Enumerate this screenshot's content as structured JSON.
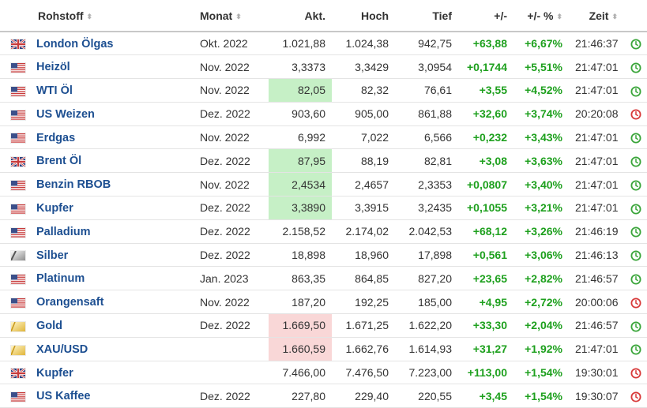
{
  "header": {
    "rohstoff": "Rohstoff",
    "monat": "Monat",
    "akt": "Akt.",
    "hoch": "Hoch",
    "tief": "Tief",
    "change": "+/-",
    "change_pct": "+/- %",
    "zeit": "Zeit"
  },
  "colors": {
    "positive": "#1ea01e",
    "link": "#1d4f91",
    "highlight_up": "#c6f0c6",
    "highlight_down": "#f9d7d7",
    "clock_open": "#3aa53a",
    "clock_closed": "#d83a3a"
  },
  "rows": [
    {
      "flag": "uk-flag-icon",
      "name": "London Ölgas",
      "month": "Okt. 2022",
      "akt": "1.021,88",
      "hoch": "1.024,38",
      "tief": "942,75",
      "chg": "+63,88",
      "pct": "+6,67%",
      "time": "21:46:37",
      "clock": "open",
      "hl": ""
    },
    {
      "flag": "us-flag-icon",
      "name": "Heizöl",
      "month": "Nov. 2022",
      "akt": "3,3373",
      "hoch": "3,3429",
      "tief": "3,0954",
      "chg": "+0,1744",
      "pct": "+5,51%",
      "time": "21:47:01",
      "clock": "open",
      "hl": ""
    },
    {
      "flag": "us-flag-icon",
      "name": "WTI Öl",
      "month": "Nov. 2022",
      "akt": "82,05",
      "hoch": "82,32",
      "tief": "76,61",
      "chg": "+3,55",
      "pct": "+4,52%",
      "time": "21:47:01",
      "clock": "open",
      "hl": "green"
    },
    {
      "flag": "us-flag-icon",
      "name": "US Weizen",
      "month": "Dez. 2022",
      "akt": "903,60",
      "hoch": "905,00",
      "tief": "861,88",
      "chg": "+32,60",
      "pct": "+3,74%",
      "time": "20:20:08",
      "clock": "closed",
      "hl": ""
    },
    {
      "flag": "us-flag-icon",
      "name": "Erdgas",
      "month": "Nov. 2022",
      "akt": "6,992",
      "hoch": "7,022",
      "tief": "6,566",
      "chg": "+0,232",
      "pct": "+3,43%",
      "time": "21:47:01",
      "clock": "open",
      "hl": ""
    },
    {
      "flag": "uk-flag-icon",
      "name": "Brent Öl",
      "month": "Dez. 2022",
      "akt": "87,95",
      "hoch": "88,19",
      "tief": "82,81",
      "chg": "+3,08",
      "pct": "+3,63%",
      "time": "21:47:01",
      "clock": "open",
      "hl": "green"
    },
    {
      "flag": "us-flag-icon",
      "name": "Benzin RBOB",
      "month": "Nov. 2022",
      "akt": "2,4534",
      "hoch": "2,4657",
      "tief": "2,3353",
      "chg": "+0,0807",
      "pct": "+3,40%",
      "time": "21:47:01",
      "clock": "open",
      "hl": "green"
    },
    {
      "flag": "us-flag-icon",
      "name": "Kupfer",
      "month": "Dez. 2022",
      "akt": "3,3890",
      "hoch": "3,3915",
      "tief": "3,2435",
      "chg": "+0,1055",
      "pct": "+3,21%",
      "time": "21:47:01",
      "clock": "open",
      "hl": "green"
    },
    {
      "flag": "us-flag-icon",
      "name": "Palladium",
      "month": "Dez. 2022",
      "akt": "2.158,52",
      "hoch": "2.174,02",
      "tief": "2.042,53",
      "chg": "+68,12",
      "pct": "+3,26%",
      "time": "21:46:19",
      "clock": "open",
      "hl": ""
    },
    {
      "flag": "silver-icon",
      "name": "Silber",
      "month": "Dez. 2022",
      "akt": "18,898",
      "hoch": "18,960",
      "tief": "17,898",
      "chg": "+0,561",
      "pct": "+3,06%",
      "time": "21:46:13",
      "clock": "open",
      "hl": ""
    },
    {
      "flag": "us-flag-icon",
      "name": "Platinum",
      "month": "Jan. 2023",
      "akt": "863,35",
      "hoch": "864,85",
      "tief": "827,20",
      "chg": "+23,65",
      "pct": "+2,82%",
      "time": "21:46:57",
      "clock": "open",
      "hl": ""
    },
    {
      "flag": "us-flag-icon",
      "name": "Orangensaft",
      "month": "Nov. 2022",
      "akt": "187,20",
      "hoch": "192,25",
      "tief": "185,00",
      "chg": "+4,95",
      "pct": "+2,72%",
      "time": "20:00:06",
      "clock": "closed",
      "hl": ""
    },
    {
      "flag": "gold-icon",
      "name": "Gold",
      "month": "Dez. 2022",
      "akt": "1.669,50",
      "hoch": "1.671,25",
      "tief": "1.622,20",
      "chg": "+33,30",
      "pct": "+2,04%",
      "time": "21:46:57",
      "clock": "open",
      "hl": "red"
    },
    {
      "flag": "gold-icon",
      "name": "XAU/USD",
      "month": "",
      "akt": "1.660,59",
      "hoch": "1.662,76",
      "tief": "1.614,93",
      "chg": "+31,27",
      "pct": "+1,92%",
      "time": "21:47:01",
      "clock": "open",
      "hl": "red"
    },
    {
      "flag": "uk-flag-icon",
      "name": "Kupfer",
      "month": "",
      "akt": "7.466,00",
      "hoch": "7.476,50",
      "tief": "7.223,00",
      "chg": "+113,00",
      "pct": "+1,54%",
      "time": "19:30:01",
      "clock": "closed",
      "hl": ""
    },
    {
      "flag": "us-flag-icon",
      "name": "US Kaffee",
      "month": "Dez. 2022",
      "akt": "227,80",
      "hoch": "229,40",
      "tief": "220,55",
      "chg": "+3,45",
      "pct": "+1,54%",
      "time": "19:30:07",
      "clock": "closed",
      "hl": ""
    }
  ]
}
